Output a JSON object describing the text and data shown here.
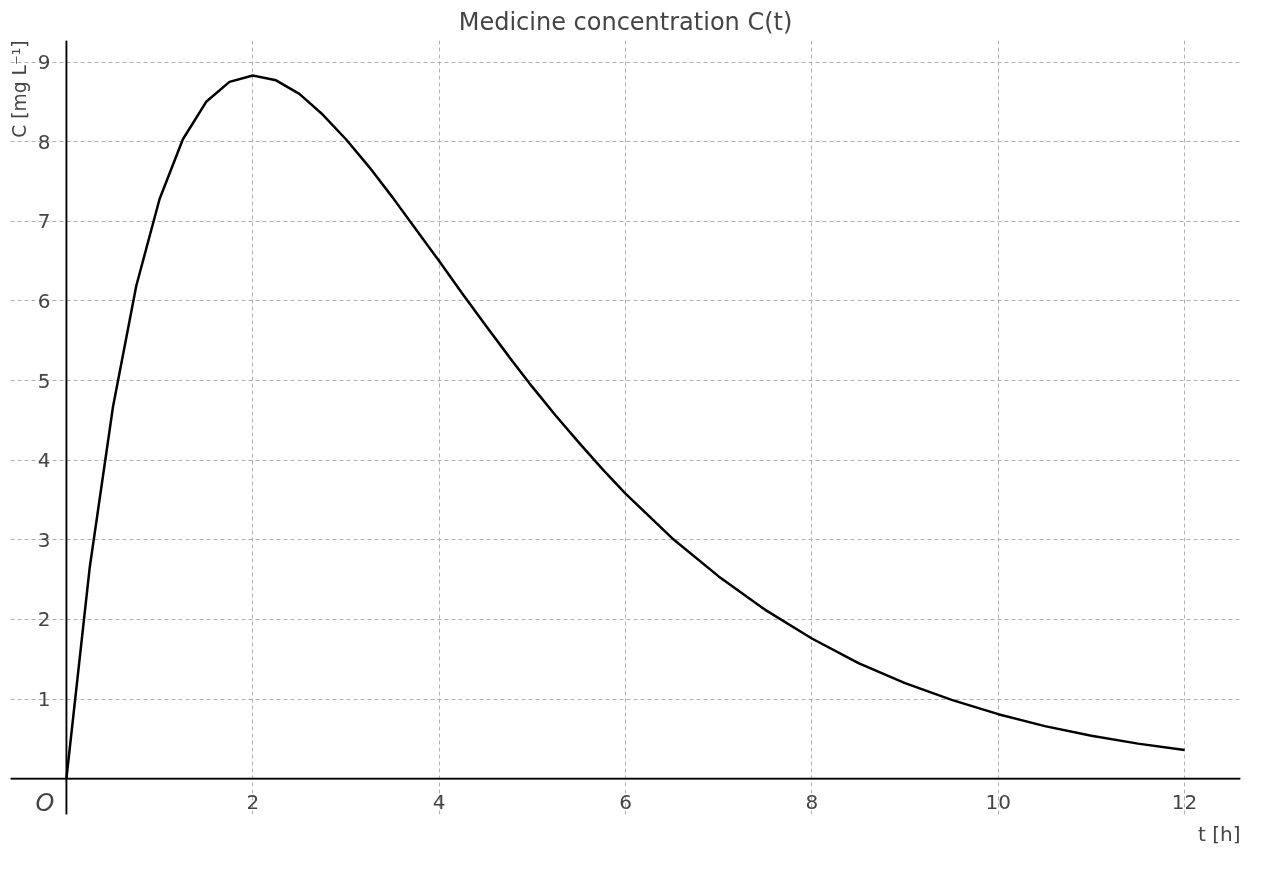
{
  "chart_data": {
    "type": "line",
    "title": "Medicine concentration C(t)",
    "xlabel": "t [h]",
    "ylabel": "C [mg L⁻¹]",
    "x": [
      0,
      0.25,
      0.5,
      0.75,
      1,
      1.25,
      1.5,
      1.75,
      2,
      2.25,
      2.5,
      2.75,
      3,
      3.25,
      3.5,
      3.75,
      4,
      4.25,
      4.5,
      4.75,
      5,
      5.25,
      5.5,
      5.75,
      6,
      6.5,
      7,
      7.5,
      8,
      8.5,
      9,
      9.5,
      10,
      10.5,
      11,
      11.5,
      12
    ],
    "series": [
      {
        "color": "#000000",
        "values": [
          0,
          2.65,
          4.67,
          6.19,
          7.28,
          8.03,
          8.5,
          8.75,
          8.83,
          8.77,
          8.6,
          8.34,
          8.03,
          7.68,
          7.3,
          6.9,
          6.5,
          6.09,
          5.69,
          5.3,
          4.92,
          4.56,
          4.22,
          3.89,
          3.58,
          3.02,
          2.54,
          2.12,
          1.76,
          1.45,
          1.2,
          0.99,
          0.81,
          0.66,
          0.54,
          0.44,
          0.36
        ]
      }
    ],
    "xlim": [
      -0.6,
      12.6
    ],
    "ylim": [
      -0.45,
      9.27
    ],
    "xticks": [
      2,
      4,
      6,
      8,
      10,
      12
    ],
    "yticks": [
      1,
      2,
      3,
      4,
      5,
      6,
      7,
      8,
      9
    ],
    "grid": true,
    "line_style": "solid",
    "annotations": [
      {
        "text": "O",
        "x": 0,
        "y": 0
      }
    ]
  }
}
